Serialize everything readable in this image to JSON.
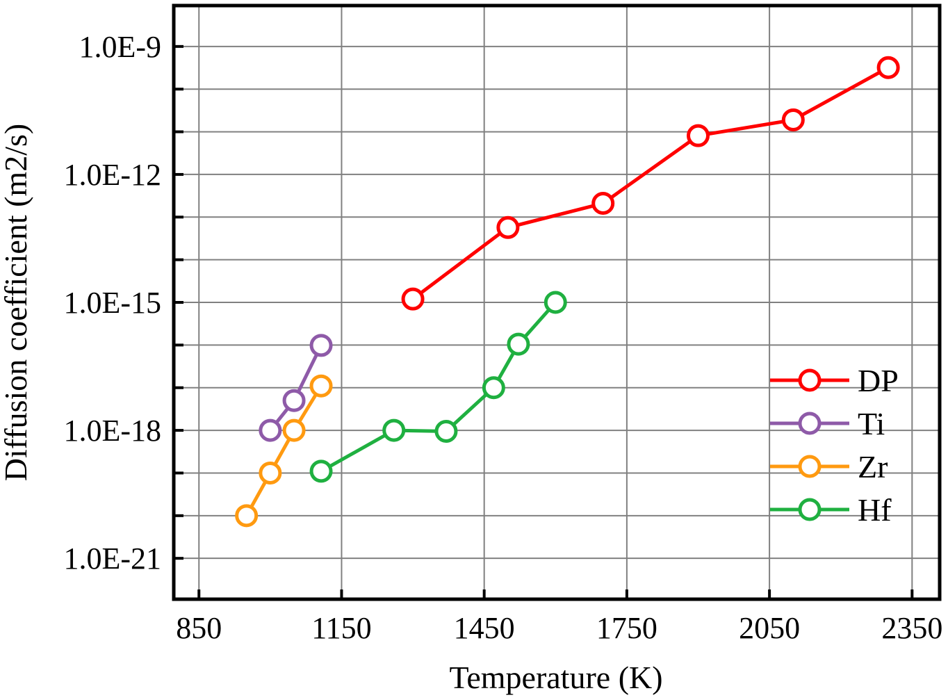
{
  "chart_data": {
    "type": "line",
    "title": "",
    "xlabel": "Temperature (K)",
    "ylabel": "Diffusion coefficient (m2/s)",
    "xlim": [
      797,
      2408
    ],
    "ylim": [
      1.1e-22,
      9.1e-09
    ],
    "yscale": "log",
    "grid": true,
    "legend_position": "right",
    "x_ticks": [
      850,
      1150,
      1450,
      1750,
      2050,
      2350
    ],
    "x_tick_labels": [
      "850",
      "1150",
      "1450",
      "1750",
      "2050",
      "2350"
    ],
    "y_ticks": [
      1e-09,
      1e-12,
      1e-15,
      1e-18,
      1e-21
    ],
    "y_tick_labels": [
      "1.0E-9",
      "1.0E-12",
      "1.0E-15",
      "1.0E-18",
      "1.0E-21"
    ],
    "series": [
      {
        "name": "DP",
        "color": "#ff0000",
        "x": [
          1300,
          1500,
          1700,
          1900,
          2100,
          2300
        ],
        "y": [
          1.2e-15,
          5.7e-14,
          2.1e-13,
          8.1e-12,
          1.9e-11,
          3.2e-10
        ]
      },
      {
        "name": "Ti",
        "color": "#8e5aa8",
        "x": [
          1000,
          1050,
          1107
        ],
        "y": [
          1e-18,
          5e-18,
          9.8e-17
        ]
      },
      {
        "name": "Zr",
        "color": "#ff9a10",
        "x": [
          950,
          1000,
          1050,
          1107
        ],
        "y": [
          1e-20,
          1e-19,
          1e-18,
          1.1e-17
        ]
      },
      {
        "name": "Hf",
        "color": "#1fb040",
        "x": [
          1107,
          1260,
          1370,
          1470,
          1522,
          1600
        ],
        "y": [
          1.1e-19,
          1e-18,
          9.5e-19,
          1e-17,
          1.05e-16,
          1e-15
        ]
      }
    ]
  }
}
